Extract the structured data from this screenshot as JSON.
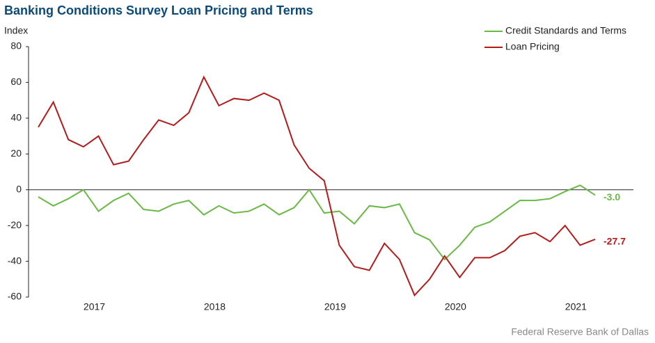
{
  "chart_data": {
    "type": "line",
    "title": "Banking Conditions Survey Loan Pricing and Terms",
    "y_axis_label": "Index",
    "source": "Federal Reserve Bank of Dallas",
    "categories": [
      null,
      null,
      null,
      null,
      "2017",
      null,
      null,
      null,
      null,
      null,
      null,
      null,
      "2018",
      null,
      null,
      null,
      null,
      null,
      null,
      null,
      "2019",
      null,
      null,
      null,
      null,
      null,
      null,
      null,
      "2020",
      null,
      null,
      null,
      null,
      null,
      null,
      null,
      "2021",
      null
    ],
    "series": [
      {
        "name": "Credit Standards and Terms",
        "color": "#6ab845",
        "end_label": "-3.0",
        "values": [
          -4,
          -9,
          -5,
          0,
          -12,
          -6,
          -2,
          -11,
          -12,
          -8,
          -6,
          -14,
          -9,
          -13,
          -12,
          -8,
          -14,
          -10,
          0,
          -13,
          -12,
          -19,
          -9,
          -10,
          -8,
          -24,
          -28,
          -39,
          -31,
          -21,
          -18,
          -12,
          -6,
          -6,
          -5,
          -1,
          2.5,
          -3.0
        ]
      },
      {
        "name": "Loan Pricing",
        "color": "#b31b1b",
        "end_label": "-27.7",
        "values": [
          35,
          49,
          28,
          24,
          30,
          14,
          16,
          28,
          39,
          36,
          43,
          63,
          47,
          51,
          50,
          54,
          50,
          25,
          12,
          5,
          -31,
          -43,
          -45,
          -30,
          -39,
          -59,
          -50,
          -37,
          -49,
          -38,
          -38,
          -34,
          -26,
          -24,
          -29,
          -20,
          -31,
          -27.7
        ]
      }
    ],
    "ylim": [
      -60,
      80
    ],
    "yticks": [
      -60,
      -40,
      -20,
      0,
      20,
      40,
      60,
      80
    ],
    "legend": "top-right"
  }
}
